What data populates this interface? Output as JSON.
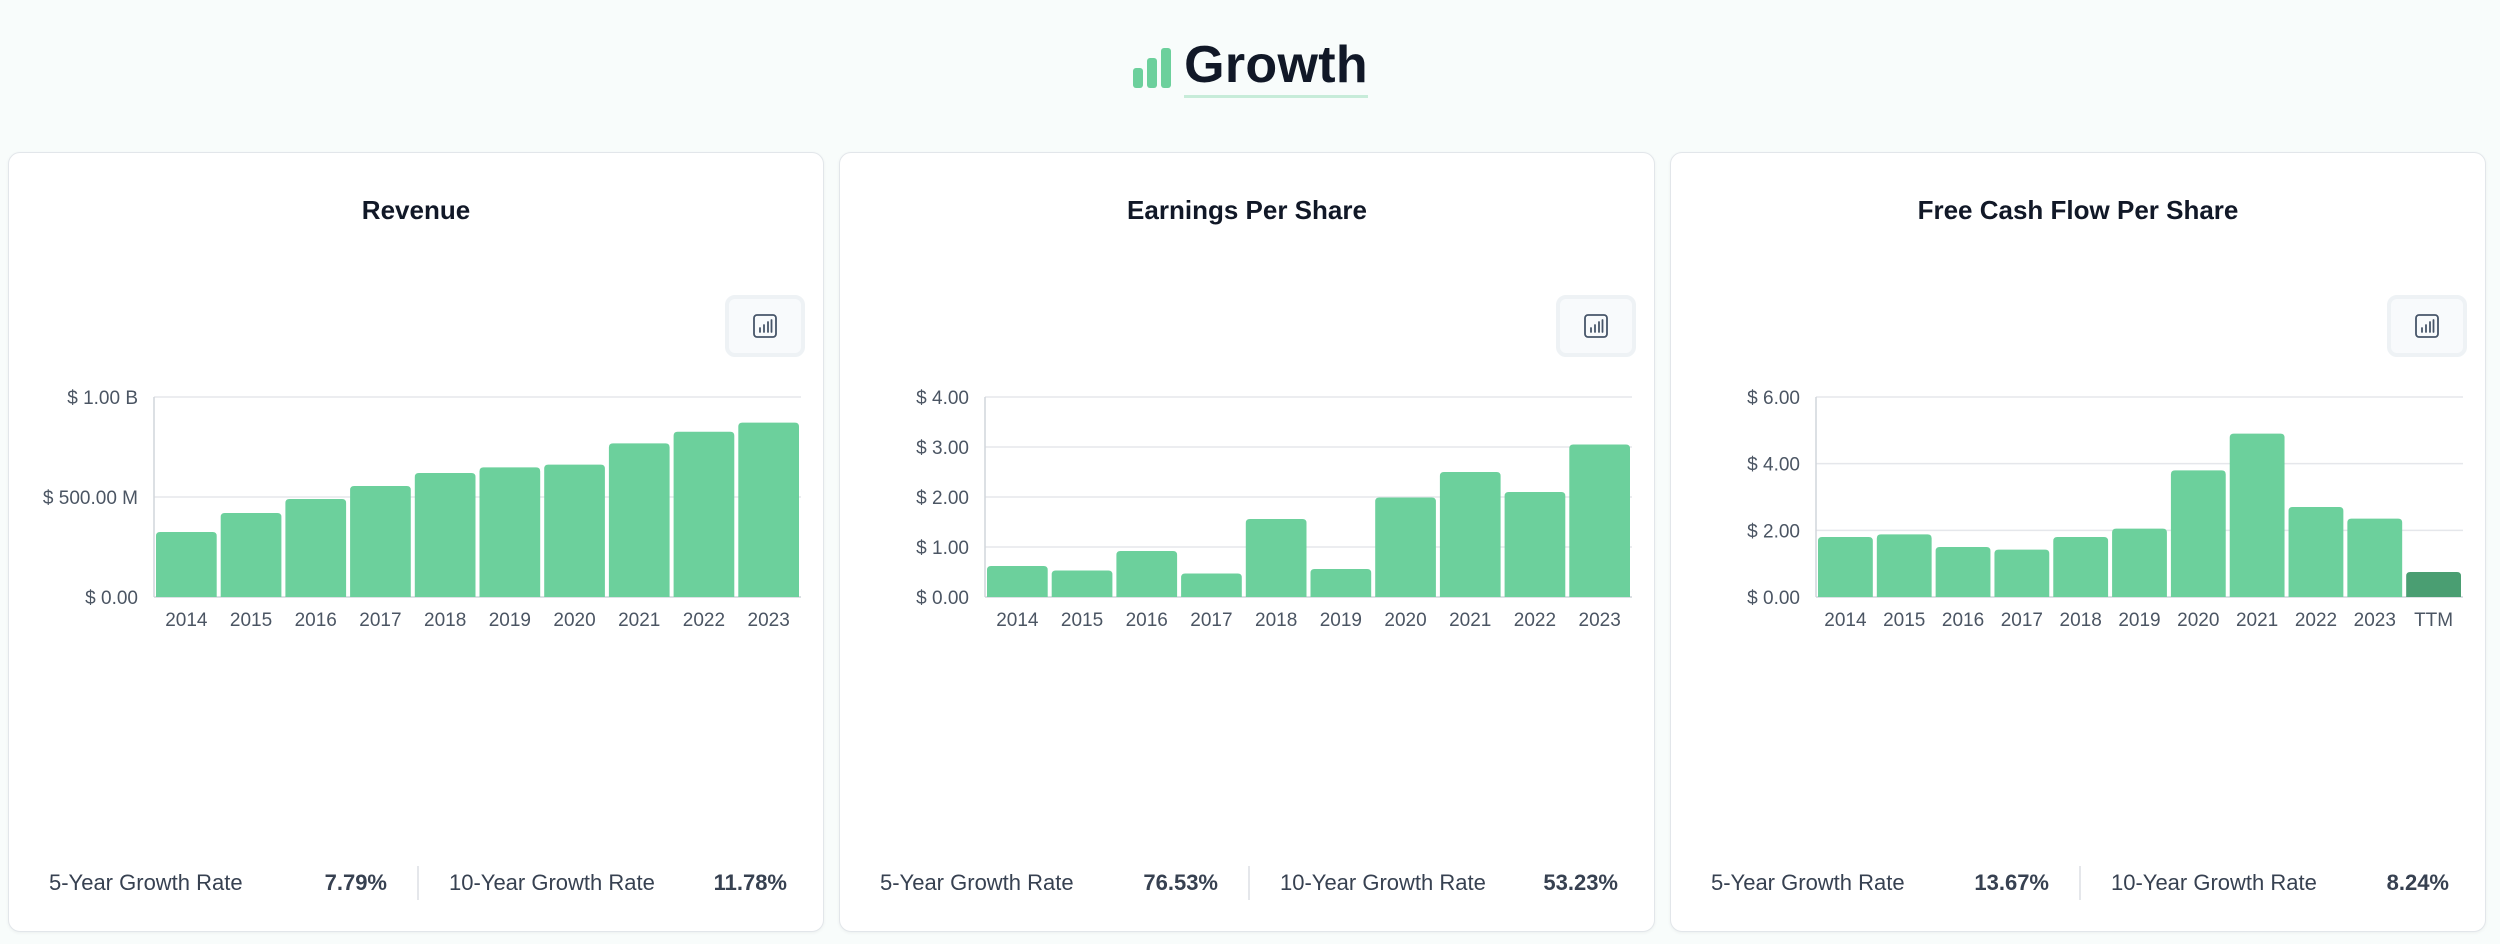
{
  "header": {
    "title": "Growth",
    "icon": "bar-chart-icon",
    "accent": "#6cd09c"
  },
  "colors": {
    "bar": "#6cd09c",
    "bar_highlight": "#4a9e72",
    "grid": "#e5e7eb",
    "axis": "#d1d5db"
  },
  "cards": [
    {
      "title": "Revenue",
      "toggle_icon": "chart-toggle-icon",
      "stats": [
        {
          "label": "5-Year Growth Rate",
          "value": "7.79%"
        },
        {
          "label": "10-Year Growth Rate",
          "value": "11.78%"
        }
      ]
    },
    {
      "title": "Earnings Per Share",
      "toggle_icon": "chart-toggle-icon",
      "stats": [
        {
          "label": "5-Year Growth Rate",
          "value": "76.53%"
        },
        {
          "label": "10-Year Growth Rate",
          "value": "53.23%"
        }
      ]
    },
    {
      "title": "Free Cash Flow Per Share",
      "toggle_icon": "chart-toggle-icon",
      "stats": [
        {
          "label": "5-Year Growth Rate",
          "value": "13.67%"
        },
        {
          "label": "10-Year Growth Rate",
          "value": "8.24%"
        }
      ]
    }
  ],
  "chart_data": [
    {
      "type": "bar",
      "title": "Revenue",
      "categories": [
        "2014",
        "2015",
        "2016",
        "2017",
        "2018",
        "2019",
        "2020",
        "2021",
        "2022",
        "2023"
      ],
      "values": [
        325000000,
        420000000,
        490000000,
        555000000,
        620000000,
        648000000,
        662000000,
        768000000,
        826000000,
        872000000
      ],
      "ylim": [
        0,
        1000000000
      ],
      "yticks": [
        0,
        500000000,
        1000000000
      ],
      "ytick_labels": [
        "$ 0.00",
        "$ 500.00 M",
        "$ 1.00 B"
      ],
      "grid": true,
      "highlight_index": -1
    },
    {
      "type": "bar",
      "title": "Earnings Per Share",
      "categories": [
        "2014",
        "2015",
        "2016",
        "2017",
        "2018",
        "2019",
        "2020",
        "2021",
        "2022",
        "2023"
      ],
      "values": [
        0.62,
        0.53,
        0.92,
        0.47,
        1.56,
        0.56,
        1.99,
        2.5,
        2.1,
        3.05
      ],
      "ylim": [
        0,
        4
      ],
      "yticks": [
        0,
        1,
        2,
        3,
        4
      ],
      "ytick_labels": [
        "$ 0.00",
        "$ 1.00",
        "$ 2.00",
        "$ 3.00",
        "$ 4.00"
      ],
      "grid": true,
      "highlight_index": -1
    },
    {
      "type": "bar",
      "title": "Free Cash Flow Per Share",
      "categories": [
        "2014",
        "2015",
        "2016",
        "2017",
        "2018",
        "2019",
        "2020",
        "2021",
        "2022",
        "2023",
        "TTM"
      ],
      "values": [
        1.8,
        1.88,
        1.5,
        1.42,
        1.8,
        2.05,
        3.8,
        4.9,
        2.7,
        2.35,
        0.75
      ],
      "ylim": [
        0,
        6
      ],
      "yticks": [
        0,
        2,
        4,
        6
      ],
      "ytick_labels": [
        "$ 0.00",
        "$ 2.00",
        "$ 4.00",
        "$ 6.00"
      ],
      "grid": true,
      "highlight_index": 10
    }
  ]
}
